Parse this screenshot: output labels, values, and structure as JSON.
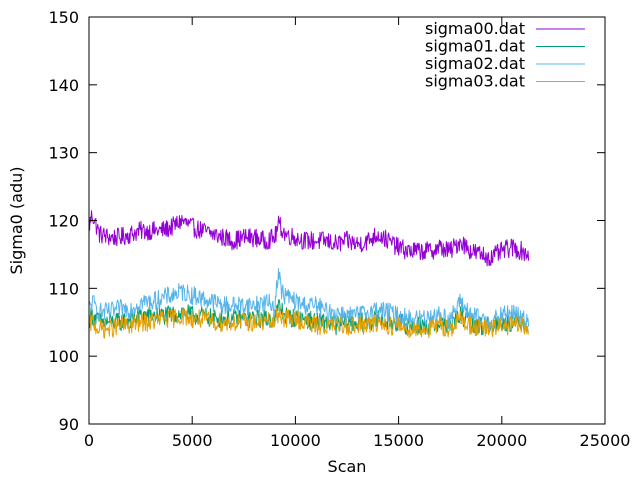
{
  "chart_data": {
    "type": "line",
    "title": "",
    "xlabel": "Scan",
    "ylabel": "Sigma0 (adu)",
    "xlim": [
      0,
      25000
    ],
    "ylim": [
      90,
      150
    ],
    "xticks": [
      0,
      5000,
      10000,
      15000,
      20000,
      25000
    ],
    "yticks": [
      90,
      100,
      110,
      120,
      130,
      140,
      150
    ],
    "grid": false,
    "legend_position": "top-right",
    "series": [
      {
        "name": "sigma00.dat",
        "color": "#9400d3",
        "x": [
          0,
          150,
          500,
          1000,
          1500,
          2000,
          2500,
          3000,
          3500,
          4000,
          4500,
          5000,
          5500,
          6000,
          6500,
          7000,
          7500,
          8000,
          8500,
          9000,
          9200,
          9500,
          10000,
          10500,
          11000,
          11500,
          12000,
          12500,
          13000,
          13500,
          14000,
          14500,
          15000,
          15500,
          16000,
          16500,
          17000,
          17500,
          18000,
          18500,
          19000,
          19500,
          20000,
          20500,
          21000,
          21300
        ],
        "y": [
          119,
          121,
          118,
          117.5,
          117.5,
          118,
          118.5,
          118.5,
          118.5,
          119,
          120,
          119,
          118.5,
          118,
          117.5,
          117,
          117.5,
          117.5,
          117,
          117.5,
          119.5,
          118,
          117.5,
          117,
          117,
          117,
          116.5,
          117,
          116.5,
          117,
          118,
          117,
          116,
          115.5,
          115.5,
          115.5,
          116,
          115.5,
          117,
          115.5,
          115,
          114.5,
          115.5,
          116,
          115.5,
          115
        ]
      },
      {
        "name": "sigma01.dat",
        "color": "#009e73",
        "x": [
          0,
          150,
          500,
          1000,
          1500,
          2000,
          2500,
          3000,
          3500,
          4000,
          4500,
          5000,
          5500,
          6000,
          6500,
          7000,
          7500,
          8000,
          8500,
          9000,
          9200,
          9500,
          10000,
          10500,
          11000,
          11500,
          12000,
          12500,
          13000,
          13500,
          14000,
          14500,
          15000,
          15500,
          16000,
          16500,
          17000,
          17500,
          18000,
          18500,
          19000,
          19500,
          20000,
          20500,
          21000,
          21300
        ],
        "y": [
          105.5,
          106,
          105,
          105,
          105,
          105.5,
          106,
          106,
          106,
          106,
          106.5,
          106,
          106,
          105.5,
          105.5,
          105.5,
          105.5,
          105.5,
          105.5,
          105.5,
          107.5,
          106,
          105.5,
          105.5,
          105,
          105,
          104.5,
          105,
          105,
          105,
          105.5,
          105,
          105,
          104.5,
          104.5,
          104.5,
          105,
          104.5,
          106,
          105,
          104.5,
          104.5,
          105,
          105,
          105,
          104.5
        ]
      },
      {
        "name": "sigma02.dat",
        "color": "#56b4e9",
        "x": [
          0,
          150,
          500,
          1000,
          1500,
          2000,
          2500,
          3000,
          3500,
          4000,
          4500,
          5000,
          5500,
          6000,
          6500,
          7000,
          7500,
          8000,
          8500,
          9000,
          9200,
          9300,
          9500,
          10000,
          10500,
          11000,
          11500,
          12000,
          12500,
          13000,
          13500,
          14000,
          14500,
          15000,
          15500,
          16000,
          16500,
          17000,
          17500,
          18000,
          18500,
          19000,
          19500,
          20000,
          20500,
          21000,
          21300
        ],
        "y": [
          107,
          108,
          106.5,
          106.5,
          107,
          107,
          108,
          108,
          108.5,
          109,
          109.5,
          109,
          108.5,
          108,
          107.5,
          107.5,
          107.5,
          107.5,
          108,
          107.5,
          113,
          109.5,
          109,
          108,
          107.5,
          107.5,
          106.5,
          106.5,
          106,
          106,
          106.5,
          107,
          106.5,
          106,
          105.5,
          105.5,
          106,
          106,
          105.5,
          108,
          106,
          105.5,
          105,
          106,
          106.5,
          105.5,
          105
        ]
      },
      {
        "name": "sigma03.dat",
        "color": "#e69f00",
        "x": [
          0,
          150,
          500,
          1000,
          1500,
          2000,
          2500,
          3000,
          3500,
          4000,
          4500,
          5000,
          5500,
          6000,
          6500,
          7000,
          7500,
          8000,
          8500,
          9000,
          9200,
          9500,
          10000,
          10500,
          11000,
          11500,
          12000,
          12500,
          13000,
          13500,
          14000,
          14500,
          15000,
          15500,
          16000,
          16500,
          17000,
          17500,
          18000,
          18500,
          19000,
          19500,
          20000,
          20500,
          21000,
          21300
        ],
        "y": [
          104.5,
          105,
          104,
          104,
          104.5,
          104.5,
          105,
          105,
          105.5,
          105.5,
          106,
          105.5,
          105.5,
          105,
          105,
          105,
          105,
          105,
          105,
          105,
          106.5,
          105.5,
          105.5,
          105,
          104.5,
          104.5,
          104.5,
          104.5,
          104.5,
          104.5,
          105,
          104.5,
          104.5,
          104,
          104,
          104,
          104.5,
          104,
          105.5,
          104.5,
          104,
          104,
          104.5,
          104.5,
          104.5,
          104
        ]
      }
    ]
  }
}
